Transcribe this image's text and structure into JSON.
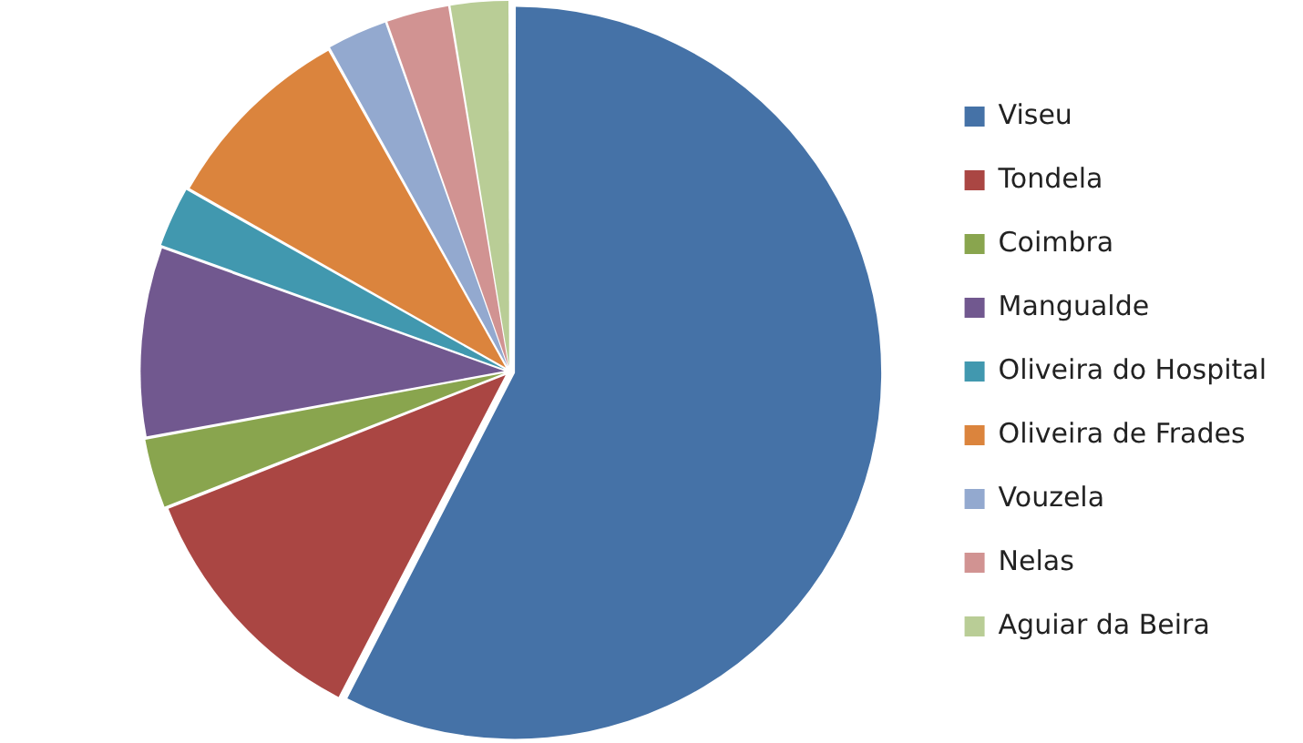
{
  "chart_data": {
    "type": "pie",
    "categories": [
      "Viseu",
      "Tondela",
      "Coimbra",
      "Mangualde",
      "Oliveira do Hospital",
      "Oliveira de Frades",
      "Vouzela",
      "Nelas",
      "Aguiar da Beira"
    ],
    "values": [
      57.6,
      11.4,
      3.1,
      8.4,
      2.7,
      8.7,
      2.7,
      2.8,
      2.6
    ],
    "colors": [
      "#4572a7",
      "#aa4643",
      "#89a54e",
      "#71588f",
      "#4198af",
      "#db843d",
      "#93a9cf",
      "#d19392",
      "#b9cd96"
    ],
    "legend": "right"
  }
}
